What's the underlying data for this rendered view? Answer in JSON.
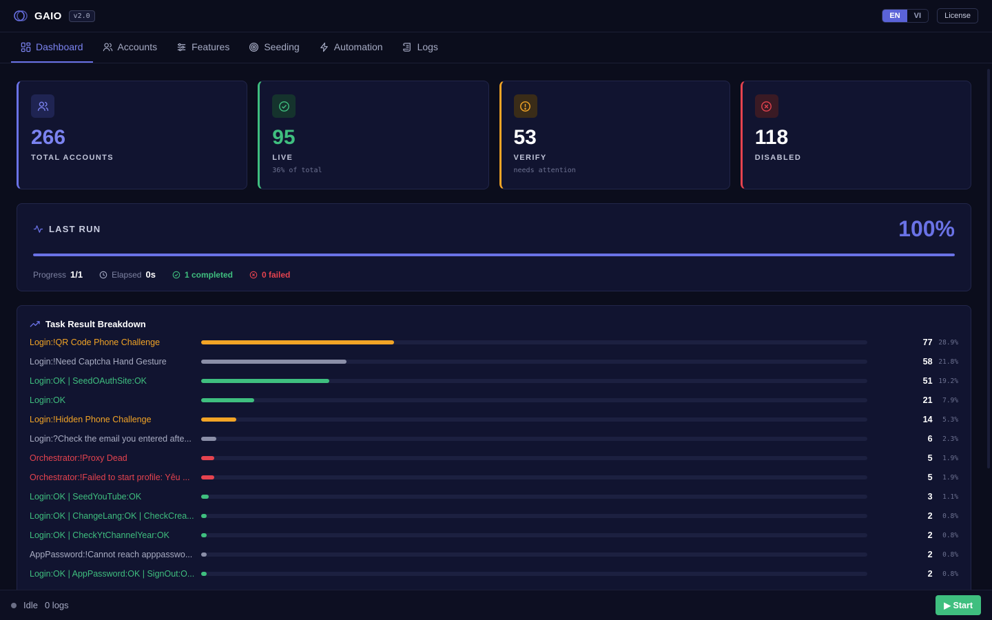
{
  "app": {
    "name": "GAIO",
    "version": "v2.0"
  },
  "header": {
    "languages": [
      {
        "code": "EN",
        "active": true
      },
      {
        "code": "VI",
        "active": false
      }
    ],
    "license_label": "License"
  },
  "nav": {
    "items": [
      {
        "label": "Dashboard",
        "icon": "dashboard-icon",
        "active": true
      },
      {
        "label": "Accounts",
        "icon": "users-icon",
        "active": false
      },
      {
        "label": "Features",
        "icon": "sliders-icon",
        "active": false
      },
      {
        "label": "Seeding",
        "icon": "target-icon",
        "active": false
      },
      {
        "label": "Automation",
        "icon": "bolt-icon",
        "active": false
      },
      {
        "label": "Logs",
        "icon": "scroll-icon",
        "active": false
      }
    ]
  },
  "stats": [
    {
      "value": "266",
      "label": "TOTAL ACCOUNTS",
      "sub": "",
      "icon": "users-icon",
      "color": "#6a72e6"
    },
    {
      "value": "95",
      "label": "LIVE",
      "sub": "36% of total",
      "icon": "check-circle-icon",
      "color": "#3fbf7f"
    },
    {
      "value": "53",
      "label": "VERIFY",
      "sub": "needs attention",
      "icon": "alert-circle-icon",
      "color": "#f2a426"
    },
    {
      "value": "118",
      "label": "DISABLED",
      "sub": "",
      "icon": "x-circle-icon",
      "color": "#e5434f"
    }
  ],
  "last_run": {
    "title": "LAST RUN",
    "percent_label": "100%",
    "progress": 1.0,
    "progress_label": "Progress",
    "progress_value": "1/1",
    "elapsed_label": "Elapsed",
    "elapsed_value": "0s",
    "completed_label": "1 completed",
    "failed_label": "0 failed"
  },
  "breakdown": {
    "title": "Task Result Breakdown",
    "rows": [
      {
        "label": "Login:!QR Code Phone Challenge",
        "count": "77",
        "pct": "28.9%",
        "fraction": 0.289,
        "color": "#f2a426",
        "tone": "orange"
      },
      {
        "label": "Login:!Need Captcha Hand Gesture",
        "count": "58",
        "pct": "21.8%",
        "fraction": 0.218,
        "color": "#8b8fa8",
        "tone": "gray"
      },
      {
        "label": "Login:OK | SeedOAuthSite:OK",
        "count": "51",
        "pct": "19.2%",
        "fraction": 0.192,
        "color": "#3fbf7f",
        "tone": "green"
      },
      {
        "label": "Login:OK",
        "count": "21",
        "pct": "7.9%",
        "fraction": 0.079,
        "color": "#3fbf7f",
        "tone": "green"
      },
      {
        "label": "Login:!Hidden Phone Challenge",
        "count": "14",
        "pct": "5.3%",
        "fraction": 0.053,
        "color": "#f2a426",
        "tone": "orange"
      },
      {
        "label": "Login:?Check the email you entered afte...",
        "count": "6",
        "pct": "2.3%",
        "fraction": 0.023,
        "color": "#8b8fa8",
        "tone": "gray"
      },
      {
        "label": "Orchestrator:!Proxy Dead",
        "count": "5",
        "pct": "1.9%",
        "fraction": 0.019,
        "color": "#e5434f",
        "tone": "red"
      },
      {
        "label": "Orchestrator:!Failed to start profile: Yêu ...",
        "count": "5",
        "pct": "1.9%",
        "fraction": 0.019,
        "color": "#e5434f",
        "tone": "red"
      },
      {
        "label": "Login:OK | SeedYouTube:OK",
        "count": "3",
        "pct": "1.1%",
        "fraction": 0.011,
        "color": "#3fbf7f",
        "tone": "green"
      },
      {
        "label": "Login:OK | ChangeLang:OK | CheckCrea...",
        "count": "2",
        "pct": "0.8%",
        "fraction": 0.008,
        "color": "#3fbf7f",
        "tone": "green"
      },
      {
        "label": "Login:OK | CheckYtChannelYear:OK",
        "count": "2",
        "pct": "0.8%",
        "fraction": 0.008,
        "color": "#3fbf7f",
        "tone": "green"
      },
      {
        "label": "AppPassword:!Cannot reach apppasswo...",
        "count": "2",
        "pct": "0.8%",
        "fraction": 0.008,
        "color": "#8b8fa8",
        "tone": "gray"
      },
      {
        "label": "Login:OK | AppPassword:OK | SignOut:O...",
        "count": "2",
        "pct": "0.8%",
        "fraction": 0.008,
        "color": "#3fbf7f",
        "tone": "green"
      }
    ]
  },
  "footer": {
    "status": "Idle",
    "logs": "0 logs",
    "start_label": "▶ Start"
  }
}
